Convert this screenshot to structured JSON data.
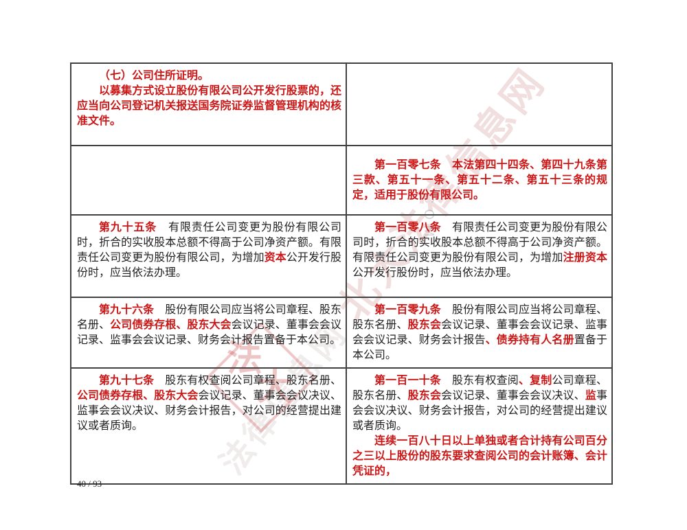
{
  "page": {
    "number_label": "40 / 93"
  },
  "colors": {
    "red": "#cc1616",
    "ink": "#1f1f1f",
    "border": "#404040",
    "watermark_red": "#c73e3e"
  },
  "watermark": {
    "line1": "北大法律信息网",
    "line2": "法律信息网",
    "latin": "COM",
    "seal_chars": [
      "法",
      "大"
    ]
  },
  "table": {
    "rows": [
      {
        "left": {
          "paragraphs": [
            {
              "runs": [
                {
                  "text": "（七）公司住所证明。",
                  "red": true
                }
              ]
            },
            {
              "runs": [
                {
                  "text": "以募集方式设立股份有限公司公开发行股票的，还应当向公司登记机关报送国务院证券监督管理机构的核准文件。",
                  "red": true
                }
              ]
            }
          ]
        },
        "right": {
          "paragraphs": []
        }
      },
      {
        "left": {
          "paragraphs": []
        },
        "right": {
          "valign": "middle",
          "paragraphs": [
            {
              "runs": [
                {
                  "text": "第一百零七条",
                  "red": true
                },
                {
                  "text": "　本法第四十四条、第四十九条第三款、第五十一条、第五十二条、第五十三条的规定，适用于股份有限公司。",
                  "red": true
                }
              ]
            }
          ]
        }
      },
      {
        "left": {
          "paragraphs": [
            {
              "runs": [
                {
                  "text": "第九十五条",
                  "red": true
                },
                {
                  "text": "　有限责任公司变更为股份有限公司时，折合的实收股本总额不得高于公司净资产额。有限责任公司变更为股份有限公司，为增加",
                  "red": false
                },
                {
                  "text": "资本",
                  "red": true
                },
                {
                  "text": "公开发行股份时，应当依法办理。",
                  "red": false
                }
              ]
            }
          ]
        },
        "right": {
          "paragraphs": [
            {
              "runs": [
                {
                  "text": "第一百零八条",
                  "red": true
                },
                {
                  "text": "　有限责任公司变更为股份有限公司时，折合的实收股本总额不得高于公司净资产额。有限责任公司变更为股份有限公司，为增加",
                  "red": false
                },
                {
                  "text": "注册资本",
                  "red": true
                },
                {
                  "text": "公开发行股份时，应当依法办理。",
                  "red": false
                }
              ]
            }
          ]
        }
      },
      {
        "left": {
          "paragraphs": [
            {
              "runs": [
                {
                  "text": "第九十六条",
                  "red": true
                },
                {
                  "text": "　股份有限公司应当将公司章程、股东名册、",
                  "red": false
                },
                {
                  "text": "公司债券存根、股东大会",
                  "red": true
                },
                {
                  "text": "会议记录、董事会会议记录、监事会会议记录、财务会计报告置备于本公司。",
                  "red": false
                }
              ]
            }
          ]
        },
        "right": {
          "paragraphs": [
            {
              "runs": [
                {
                  "text": "第一百零九条",
                  "red": true
                },
                {
                  "text": "　股份有限公司应当将公司章程、股东名册、",
                  "red": false
                },
                {
                  "text": "股东会",
                  "red": true
                },
                {
                  "text": "会议记录、董事会会议记录、监事会会议记录、财务会计报告",
                  "red": false
                },
                {
                  "text": "、债券持有人名册",
                  "red": true
                },
                {
                  "text": "置备于本公司。",
                  "red": false
                }
              ]
            }
          ]
        }
      },
      {
        "left": {
          "paragraphs": [
            {
              "runs": [
                {
                  "text": "第九十七条",
                  "red": true
                },
                {
                  "text": "　股东有权查阅公司章程、股东名册、",
                  "red": false
                },
                {
                  "text": "公司债券存根、股东大会",
                  "red": true
                },
                {
                  "text": "会议记录、董事会会议决议、监事会会议决议、财务会计报告，对公司的经营提出建议或者质询。",
                  "red": false
                }
              ]
            }
          ]
        },
        "right": {
          "paragraphs": [
            {
              "runs": [
                {
                  "text": "第一百一十条",
                  "red": true
                },
                {
                  "text": "　股东有权查阅",
                  "red": false
                },
                {
                  "text": "、复制",
                  "red": true
                },
                {
                  "text": "公司章程、股东名册、",
                  "red": false
                },
                {
                  "text": "股东会",
                  "red": true
                },
                {
                  "text": "会议记录、董事会会议决议、",
                  "red": false
                },
                {
                  "text": "监",
                  "red": true
                },
                {
                  "text": "事会会议决议、财务会计报告，对公司的经营提出建议或者质询。",
                  "red": false
                }
              ]
            },
            {
              "runs": [
                {
                  "text": "连续一百八十日以上单独或者合计持有公司百分之三以上股份的股东要求查阅公司的会计账簿、会计凭证的，",
                  "red": true
                }
              ]
            }
          ]
        }
      }
    ]
  }
}
